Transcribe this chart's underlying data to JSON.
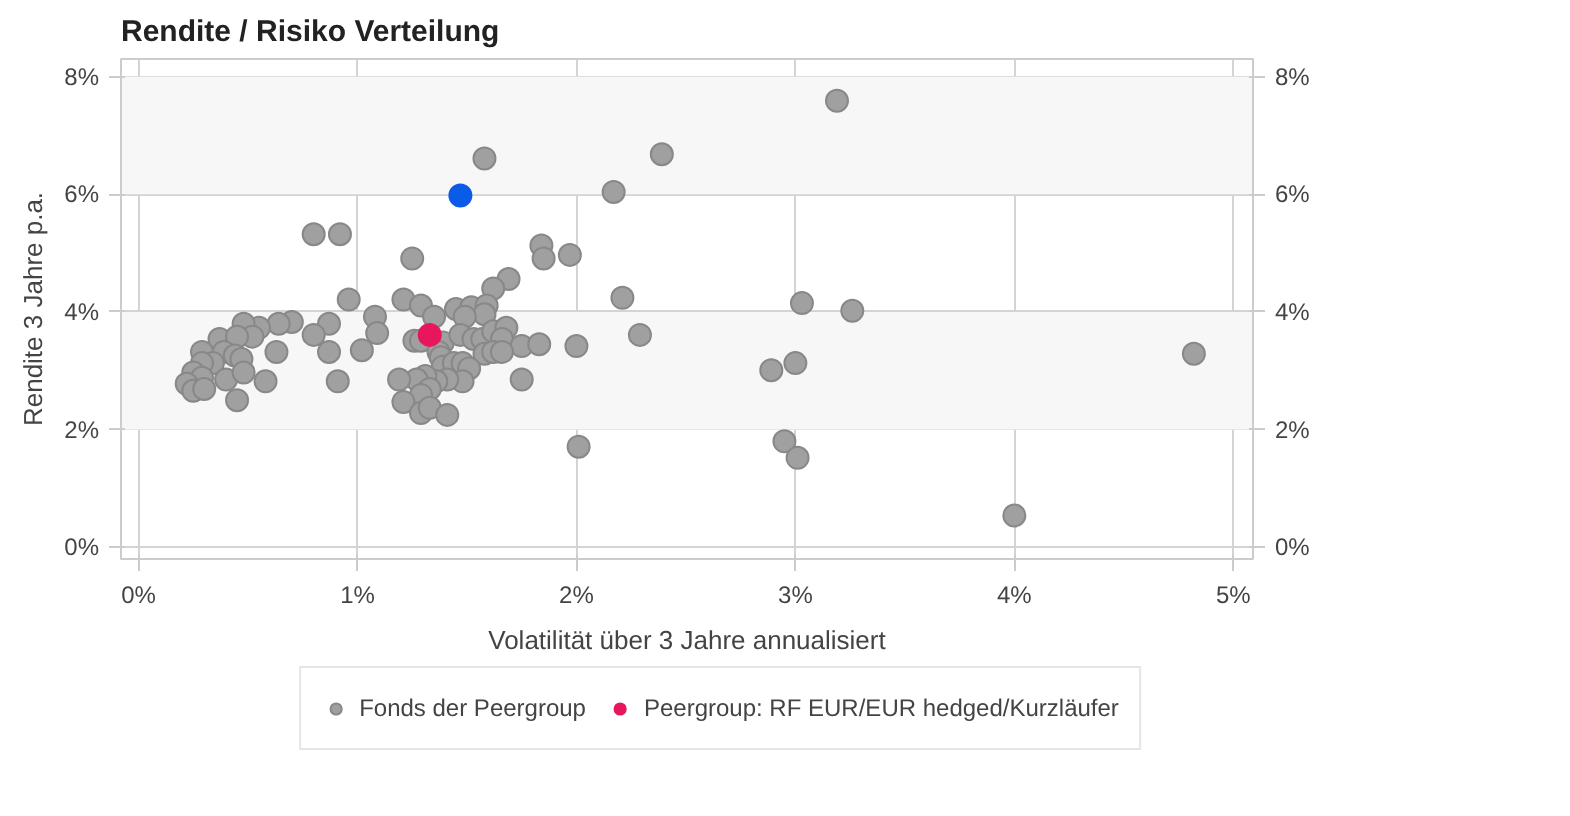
{
  "chart_data": {
    "type": "scatter",
    "title": "Rendite / Risiko Verteilung",
    "xlabel": "Volatilität über 3 Jahre annualisiert",
    "ylabel": "Rendite 3 Jahre p.a.",
    "xlim": [
      -0.08,
      5.09
    ],
    "ylim": [
      -0.2,
      8.3
    ],
    "y2lim": [
      -0.2,
      8.3
    ],
    "xticks": [
      {
        "value": 0,
        "label": "0%"
      },
      {
        "value": 1,
        "label": "1%"
      },
      {
        "value": 2,
        "label": "2%"
      },
      {
        "value": 3,
        "label": "3%"
      },
      {
        "value": 4,
        "label": "4%"
      },
      {
        "value": 5,
        "label": "5%"
      }
    ],
    "yticks": [
      {
        "value": 0,
        "label": "0%"
      },
      {
        "value": 2,
        "label": "2%"
      },
      {
        "value": 4,
        "label": "4%"
      },
      {
        "value": 6,
        "label": "6%"
      },
      {
        "value": 8,
        "label": "8%"
      }
    ],
    "y2ticks": [
      {
        "value": 0,
        "label": "0%"
      },
      {
        "value": 2,
        "label": "2%"
      },
      {
        "value": 4,
        "label": "4%"
      },
      {
        "value": 6,
        "label": "6%"
      },
      {
        "value": 8,
        "label": "8%"
      }
    ],
    "grid": true,
    "legend": "bottom",
    "marker": "circle",
    "bands": [
      {
        "axis": "y",
        "from": 2,
        "to": 4,
        "color": "#f7f7f7"
      },
      {
        "axis": "y",
        "from": 6,
        "to": 8,
        "color": "#f7f7f7"
      }
    ],
    "series": [
      {
        "name": "Fonds der Peergroup",
        "color": "#a0a0a0",
        "x": [
          0.8,
          0.92,
          1.25,
          1.84,
          1.85,
          1.97,
          1.58,
          2.17,
          1.69,
          1.62,
          0.96,
          1.21,
          1.29,
          1.35,
          1.45,
          1.52,
          1.59,
          1.58,
          1.49,
          1.08,
          1.09,
          0.87,
          0.8,
          0.7,
          0.64,
          0.55,
          0.48,
          0.37,
          0.52,
          0.45,
          0.63,
          0.29,
          0.39,
          0.44,
          0.47,
          0.34,
          0.29,
          0.25,
          0.29,
          0.22,
          0.25,
          0.3,
          0.4,
          0.48,
          0.58,
          0.45,
          0.87,
          0.91,
          1.02,
          1.26,
          1.29,
          1.39,
          1.47,
          1.53,
          1.57,
          1.62,
          1.68,
          1.66,
          1.75,
          1.83,
          2.0,
          1.58,
          1.62,
          1.66,
          1.37,
          1.38,
          1.39,
          1.44,
          1.48,
          1.51,
          1.48,
          1.41,
          1.36,
          1.31,
          1.27,
          1.33,
          1.29,
          1.19,
          1.21,
          1.29,
          1.33,
          1.41,
          1.75,
          2.01,
          3.19,
          2.39,
          2.21,
          2.29,
          3.03,
          3.26,
          2.89,
          3.0,
          2.95,
          3.01,
          4.0,
          4.82
        ],
        "values": [
          5.32,
          5.32,
          4.91,
          5.13,
          4.91,
          4.97,
          6.61,
          6.04,
          4.56,
          4.4,
          4.21,
          4.21,
          4.11,
          3.92,
          4.05,
          4.08,
          4.11,
          3.96,
          3.92,
          3.92,
          3.64,
          3.8,
          3.61,
          3.83,
          3.8,
          3.73,
          3.8,
          3.54,
          3.58,
          3.58,
          3.32,
          3.32,
          3.32,
          3.26,
          3.2,
          3.13,
          3.13,
          2.97,
          2.88,
          2.78,
          2.66,
          2.69,
          2.85,
          2.97,
          2.82,
          2.5,
          3.32,
          2.82,
          3.35,
          3.51,
          3.51,
          3.48,
          3.61,
          3.54,
          3.54,
          3.67,
          3.73,
          3.54,
          3.42,
          3.45,
          3.42,
          3.29,
          3.32,
          3.32,
          3.32,
          3.23,
          3.07,
          3.13,
          3.13,
          3.04,
          2.82,
          2.85,
          2.82,
          2.91,
          2.85,
          2.69,
          2.59,
          2.85,
          2.47,
          2.28,
          2.37,
          2.25,
          2.85,
          1.71,
          7.59,
          6.68,
          4.24,
          3.61,
          4.15,
          4.02,
          3.01,
          3.13,
          1.8,
          1.52,
          0.54,
          3.29
        ]
      },
      {
        "name": "Peergroup: RF EUR/EUR hedged/Kurzläufer",
        "color": "#e8175d",
        "x": [
          1.33
        ],
        "values": [
          3.61
        ]
      },
      {
        "color": "#0a5be8",
        "x": [
          1.47
        ],
        "values": [
          5.98
        ]
      }
    ]
  }
}
